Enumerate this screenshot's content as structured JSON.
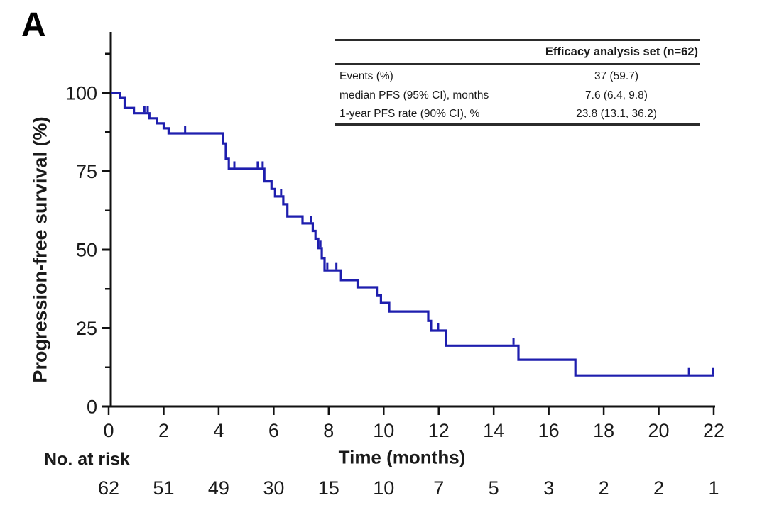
{
  "panel_label": "A",
  "table": {
    "header": "Efficacy analysis set (n=62)",
    "rows": [
      {
        "label": "Events (%)",
        "value": "37 (59.7)"
      },
      {
        "label": "median PFS (95% CI), months",
        "value": "7.6 (6.4, 9.8)"
      },
      {
        "label": "1-year PFS rate (90% CI), %",
        "value": "23.8 (13.1, 36.2)"
      }
    ]
  },
  "chart_data": {
    "type": "line",
    "subtype": "kaplan_meier_step",
    "title": "",
    "xlabel": "Time (months)",
    "ylabel": "Progression-free survival (%)",
    "xlim": [
      0,
      22
    ],
    "ylim": [
      0,
      100
    ],
    "xticks": [
      0,
      2,
      4,
      6,
      8,
      10,
      12,
      14,
      16,
      18,
      20,
      22
    ],
    "yticks": [
      0,
      25,
      50,
      75,
      100
    ],
    "y_minor_ticks": [
      12.5,
      37.5,
      62.5,
      87.5,
      112.5
    ],
    "grid": false,
    "legend": false,
    "line_color": "#1e1eae",
    "axis_color": "#111111",
    "series": [
      {
        "name": "Efficacy analysis set (n=62)",
        "steps": [
          [
            0,
            100
          ],
          [
            0.42,
            98.4
          ],
          [
            0.58,
            95.2
          ],
          [
            0.92,
            93.5
          ],
          [
            1.48,
            91.9
          ],
          [
            1.75,
            90.3
          ],
          [
            2.0,
            88.7
          ],
          [
            2.18,
            87.1
          ],
          [
            4.15,
            83.9
          ],
          [
            4.26,
            79.0
          ],
          [
            4.37,
            75.8
          ],
          [
            5.66,
            71.8
          ],
          [
            5.92,
            69.4
          ],
          [
            6.05,
            67.0
          ],
          [
            6.35,
            64.5
          ],
          [
            6.5,
            60.6
          ],
          [
            7.05,
            58.4
          ],
          [
            7.42,
            56.0
          ],
          [
            7.52,
            53.5
          ],
          [
            7.62,
            50.5
          ],
          [
            7.75,
            47.3
          ],
          [
            7.85,
            43.4
          ],
          [
            8.45,
            40.3
          ],
          [
            9.05,
            38.0
          ],
          [
            9.75,
            35.5
          ],
          [
            9.9,
            33.0
          ],
          [
            10.2,
            30.3
          ],
          [
            11.62,
            27.3
          ],
          [
            11.72,
            24.2
          ],
          [
            12.26,
            19.4
          ],
          [
            14.9,
            14.9
          ],
          [
            16.97,
            9.9
          ]
        ],
        "end_time": 22,
        "censor_marks": [
          [
            1.3,
            93.5
          ],
          [
            1.42,
            93.5
          ],
          [
            2.78,
            87.1
          ],
          [
            4.57,
            75.8
          ],
          [
            5.42,
            75.8
          ],
          [
            5.6,
            75.8
          ],
          [
            6.27,
            67.0
          ],
          [
            7.37,
            58.4
          ],
          [
            7.7,
            50.5
          ],
          [
            7.95,
            43.4
          ],
          [
            8.28,
            43.4
          ],
          [
            11.98,
            24.2
          ],
          [
            14.72,
            19.4
          ],
          [
            21.1,
            9.9
          ],
          [
            21.97,
            9.9
          ]
        ]
      }
    ],
    "at_risk": {
      "label": "No. at risk",
      "times": [
        0,
        2,
        4,
        6,
        8,
        10,
        12,
        14,
        16,
        18,
        20,
        22
      ],
      "values": [
        62,
        51,
        49,
        30,
        15,
        10,
        7,
        5,
        3,
        2,
        2,
        1
      ]
    }
  }
}
